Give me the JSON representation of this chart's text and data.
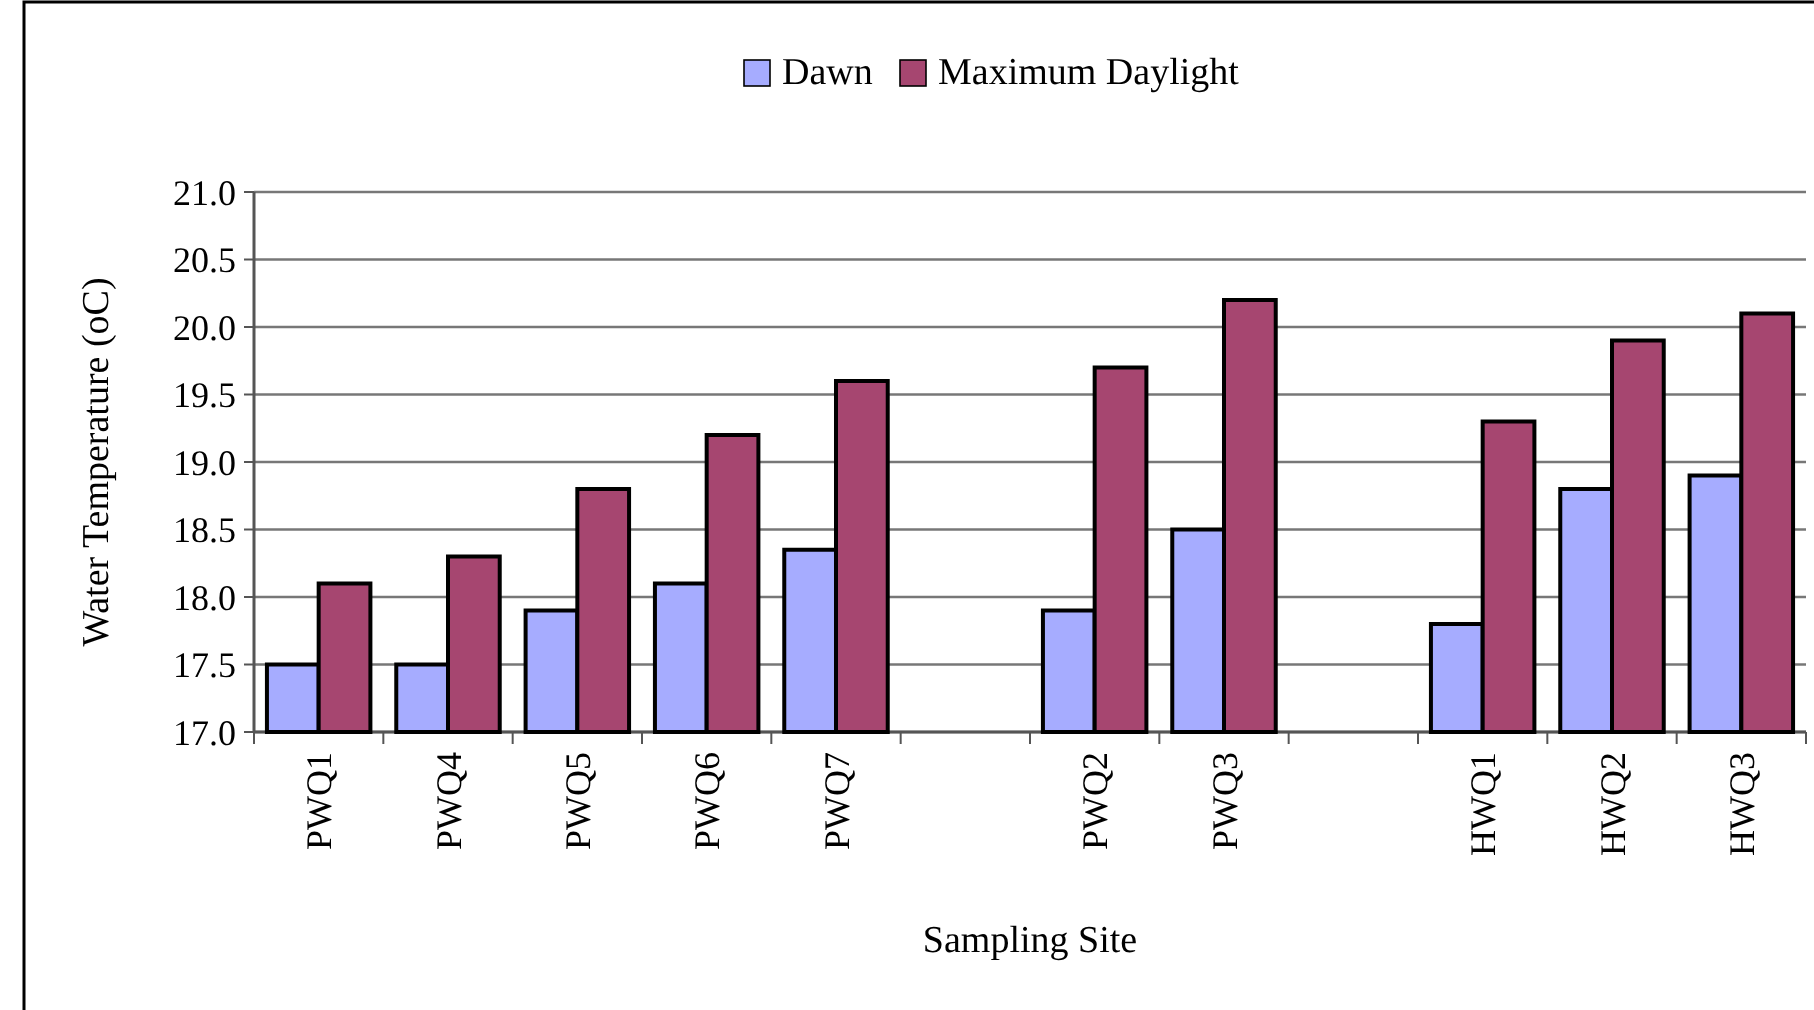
{
  "chart_data": {
    "type": "bar",
    "xlabel": "Sampling Site",
    "ylabel": "Water Temperature (oC)",
    "categories": [
      "PWQ1",
      "PWQ4",
      "PWQ5",
      "PWQ6",
      "PWQ7",
      null,
      "PWQ2",
      "PWQ3",
      null,
      "HWQ1",
      "HWQ2",
      "HWQ3"
    ],
    "series": [
      {
        "name": "Dawn",
        "color": "#a6acff",
        "values": [
          17.5,
          17.5,
          17.9,
          18.1,
          18.35,
          null,
          17.9,
          18.5,
          null,
          17.8,
          18.8,
          18.9
        ]
      },
      {
        "name": "Maximum Daylight",
        "color": "#a64670",
        "values": [
          18.1,
          18.3,
          18.8,
          19.2,
          19.6,
          null,
          19.7,
          20.2,
          null,
          19.3,
          19.9,
          20.1
        ]
      }
    ],
    "ylim": [
      17,
      21
    ],
    "yticks": [
      {
        "value": 17,
        "label": "17.0"
      },
      {
        "value": 17.5,
        "label": "17.5"
      },
      {
        "value": 18,
        "label": "18.0"
      },
      {
        "value": 18.5,
        "label": "18.5"
      },
      {
        "value": 19,
        "label": "19.0"
      },
      {
        "value": 19.5,
        "label": "19.5"
      },
      {
        "value": 20,
        "label": "20.0"
      },
      {
        "value": 20.5,
        "label": "20.5"
      },
      {
        "value": 21,
        "label": "21.0"
      }
    ],
    "grid": "y",
    "legend": "top"
  }
}
